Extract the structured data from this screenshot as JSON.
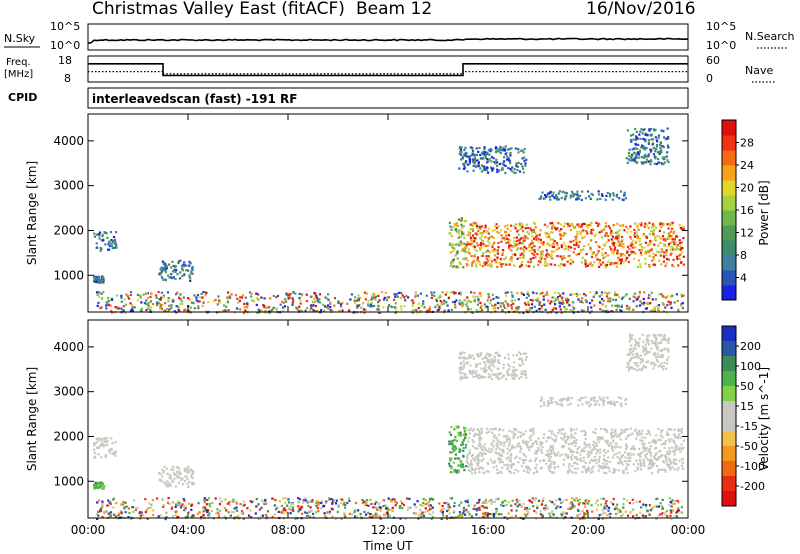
{
  "header": {
    "title": "Christmas Valley East (fitACF)",
    "beam": "Beam 12",
    "date": "16/Nov/2016"
  },
  "status_panels": {
    "nsky_label": "N.Sky",
    "nsky_ticks": [
      "10^5",
      "10^0"
    ],
    "nsearch_label": "N.Search",
    "nsearch_ticks": [
      "10^5",
      "10^0"
    ],
    "freq_label_line1": "Freq.",
    "freq_label_line2": "[MHz]",
    "freq_ticks": [
      "18",
      "8"
    ],
    "freq_schedule": [
      {
        "x": [
          0,
          3
        ],
        "value": 15
      },
      {
        "x": [
          3,
          15
        ],
        "value": 10.5
      },
      {
        "x": [
          15,
          24
        ],
        "value": 15
      }
    ],
    "nave_label": "Nave",
    "nave_ticks": [
      "60",
      "0"
    ],
    "nave_schedule": [
      {
        "x": [
          0,
          3
        ],
        "value": 24
      },
      {
        "x": [
          3,
          15
        ],
        "value": 19
      },
      {
        "x": [
          15,
          24
        ],
        "value": 24
      }
    ],
    "cpid_label": "CPID",
    "cpid_text": "interleavedscan (fast) -191 RF"
  },
  "chart_data": [
    {
      "type": "heatmap",
      "title": "",
      "xlabel": "Time UT",
      "ylabel": "Slant Range [km]",
      "xlim": [
        0,
        24
      ],
      "ylim": [
        180,
        4600
      ],
      "xticks": [
        "00:00",
        "04:00",
        "08:00",
        "12:00",
        "16:00",
        "20:00",
        "00:00"
      ],
      "yticks": [
        1000,
        2000,
        3000,
        4000
      ],
      "colorbar": {
        "label": "Power [dB]",
        "ticks": [
          "4",
          "8",
          "12",
          "16",
          "20",
          "24",
          "28"
        ],
        "colors": [
          "#1a20e6",
          "#2a55b8",
          "#3f7fa0",
          "#3e8a6e",
          "#4f9a55",
          "#6fb84a",
          "#a5d23e",
          "#e0d828",
          "#f7a21a",
          "#f56a12",
          "#ef3313",
          "#e01010"
        ]
      },
      "regions": [
        {
          "x": [
            0.2,
            1.1
          ],
          "y": [
            1550,
            2000
          ],
          "level": "low"
        },
        {
          "x": [
            0.2,
            0.6
          ],
          "y": [
            850,
            1000
          ],
          "level": "low"
        },
        {
          "x": [
            0.3,
            23.8
          ],
          "y": [
            180,
            650
          ],
          "level": "mixed"
        },
        {
          "x": [
            2.8,
            4.2
          ],
          "y": [
            900,
            1350
          ],
          "level": "low"
        },
        {
          "x": [
            14.4,
            15.1
          ],
          "y": [
            1200,
            2300
          ],
          "level": "mid"
        },
        {
          "x": [
            15.1,
            23.8
          ],
          "y": [
            1200,
            2200
          ],
          "level": "high"
        },
        {
          "x": [
            14.8,
            17.5
          ],
          "y": [
            3300,
            3900
          ],
          "level": "low"
        },
        {
          "x": [
            18.0,
            21.5
          ],
          "y": [
            2700,
            2900
          ],
          "level": "low"
        },
        {
          "x": [
            21.5,
            23.2
          ],
          "y": [
            3500,
            4300
          ],
          "level": "low"
        }
      ]
    },
    {
      "type": "heatmap",
      "title": "",
      "xlabel": "Time UT",
      "ylabel": "Slant Range [km]",
      "xlim": [
        0,
        24
      ],
      "ylim": [
        180,
        4600
      ],
      "xticks": [
        "00:00",
        "04:00",
        "08:00",
        "12:00",
        "16:00",
        "20:00",
        "00:00"
      ],
      "yticks": [
        1000,
        2000,
        3000,
        4000
      ],
      "colorbar": {
        "label": "Velocity [m s^-1]",
        "ticks": [
          "200",
          "100",
          "50",
          "15",
          "-15",
          "-50",
          "-100",
          "-200"
        ],
        "colors": [
          "#1a2ec0",
          "#2a57a8",
          "#3a8a5a",
          "#4cb24c",
          "#82d048",
          "#c8c8c0",
          "#c8c8c0",
          "#f0c24a",
          "#f39a1e",
          "#f06a10",
          "#e83010",
          "#e01010"
        ]
      },
      "regions": [
        {
          "x": [
            0.2,
            1.1
          ],
          "y": [
            1550,
            2000
          ],
          "level": "gray"
        },
        {
          "x": [
            0.2,
            0.6
          ],
          "y": [
            850,
            1000
          ],
          "level": "green"
        },
        {
          "x": [
            0.3,
            23.8
          ],
          "y": [
            180,
            650
          ],
          "level": "mixed"
        },
        {
          "x": [
            2.8,
            4.2
          ],
          "y": [
            900,
            1350
          ],
          "level": "gray"
        },
        {
          "x": [
            14.4,
            15.1
          ],
          "y": [
            1200,
            2300
          ],
          "level": "green"
        },
        {
          "x": [
            15.1,
            23.8
          ],
          "y": [
            1200,
            2200
          ],
          "level": "gray"
        },
        {
          "x": [
            14.8,
            17.5
          ],
          "y": [
            3300,
            3900
          ],
          "level": "gray"
        },
        {
          "x": [
            18.0,
            21.5
          ],
          "y": [
            2700,
            2900
          ],
          "level": "gray"
        },
        {
          "x": [
            21.5,
            23.2
          ],
          "y": [
            3500,
            4300
          ],
          "level": "gray"
        }
      ]
    }
  ]
}
